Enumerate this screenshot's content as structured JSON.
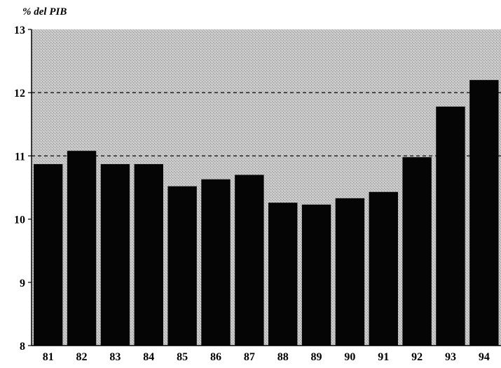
{
  "chart_data": {
    "type": "bar",
    "title": "",
    "xlabel": "",
    "ylabel": "% del PIB",
    "categories": [
      "81",
      "82",
      "83",
      "84",
      "85",
      "86",
      "87",
      "88",
      "89",
      "90",
      "91",
      "92",
      "93",
      "94"
    ],
    "values": [
      10.87,
      11.08,
      10.87,
      10.87,
      10.52,
      10.63,
      10.7,
      10.26,
      10.23,
      10.33,
      10.43,
      10.98,
      11.78,
      12.2
    ],
    "ylim": [
      8,
      13
    ],
    "yticks": [
      "8",
      "9",
      "10",
      "11",
      "12",
      "13"
    ],
    "reference_lines": [
      11,
      12
    ],
    "grid": false,
    "colors": {
      "bar": "#050505",
      "plot_background": "#c9c9c9",
      "reference_line": "#111111",
      "axis": "#000000",
      "text": "#000000"
    }
  }
}
